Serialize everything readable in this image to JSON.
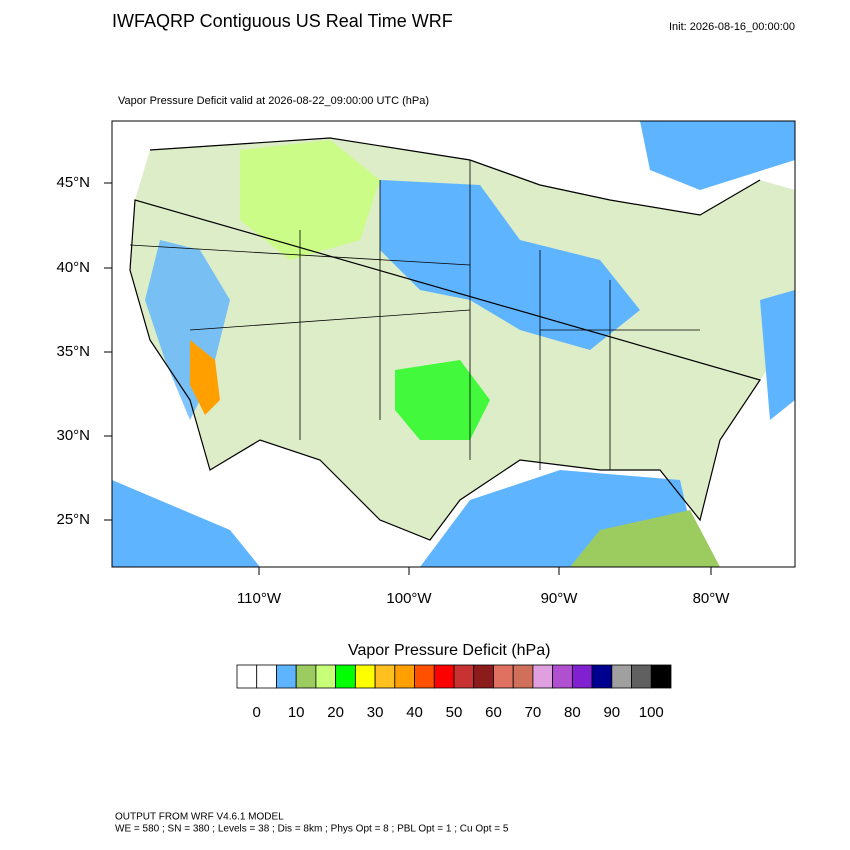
{
  "header": {
    "title": "IWFAQRP Contiguous US Real Time WRF",
    "init": "Init: 2026-08-16_00:00:00"
  },
  "subtitle": "Vapor Pressure Deficit valid at 2026-08-22_09:00:00 UTC   (hPa)",
  "map": {
    "lat_labels": [
      "45°N",
      "40°N",
      "35°N",
      "30°N",
      "25°N"
    ],
    "lon_labels": [
      "110°W",
      "100°W",
      "90°W",
      "80°W"
    ]
  },
  "colorbar": {
    "title": "Vapor Pressure Deficit  (hPa)",
    "colors": [
      "#ffffff",
      "#ffffff",
      "#5fb4ff",
      "#9ccb5f",
      "#c8ff78",
      "#00ff00",
      "#ffff00",
      "#ffc020",
      "#ffa000",
      "#ff5000",
      "#ff0000",
      "#c83232",
      "#8c1c1c",
      "#e07060",
      "#d0705a",
      "#e0a0e0",
      "#b050d0",
      "#8020d0",
      "#000090",
      "#a0a0a0",
      "#606060",
      "#000000"
    ],
    "labels": [
      0,
      10,
      20,
      30,
      40,
      50,
      60,
      70,
      80,
      90,
      100
    ]
  },
  "footer": [
    "OUTPUT FROM WRF V4.6.1 MODEL",
    "WE = 580 ; SN = 380 ; Levels = 38 ; Dis = 8km ; Phys Opt = 8 ; PBL Opt = 1 ; Cu Opt = 5"
  ]
}
